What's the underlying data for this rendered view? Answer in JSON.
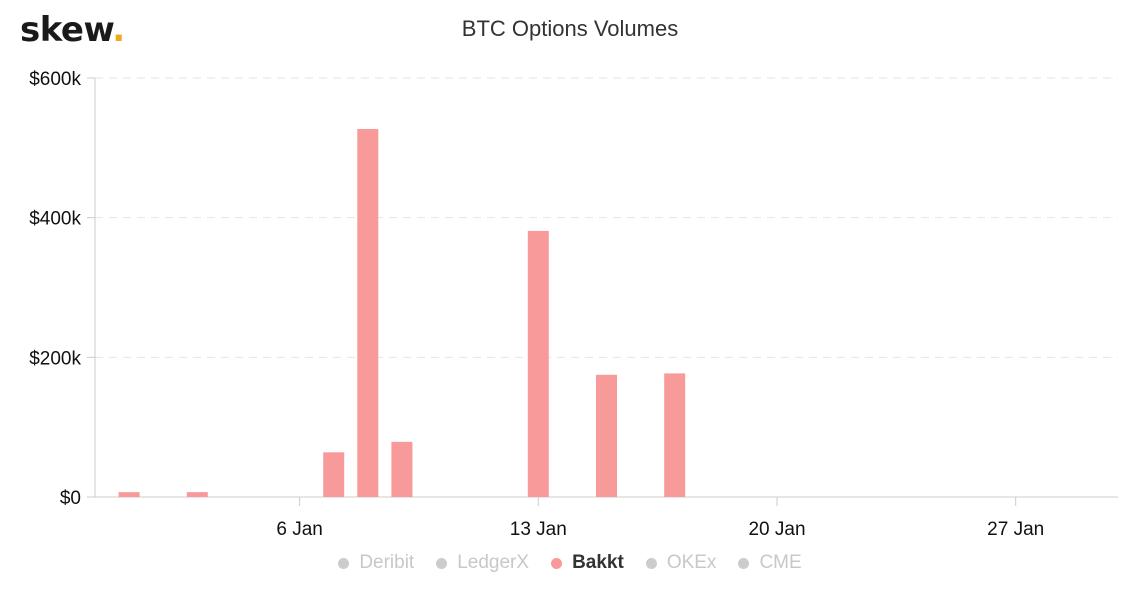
{
  "logo": {
    "text": "skew",
    "dot": "."
  },
  "colors": {
    "bar": "#f99a9a",
    "axis": "#cccccc",
    "grid": "#e6e6e6",
    "inactive_legend": "#cccccc"
  },
  "chart_data": {
    "type": "bar",
    "title": "BTC Options Volumes",
    "xlabel": "",
    "ylabel": "",
    "x_axis": {
      "type": "date",
      "range": [
        "Dec 31",
        "Jan 30"
      ],
      "ticks": [
        {
          "value": "Jan 6",
          "label": "6 Jan"
        },
        {
          "value": "Jan 13",
          "label": "13 Jan"
        },
        {
          "value": "Jan 20",
          "label": "20 Jan"
        },
        {
          "value": "Jan 27",
          "label": "27 Jan"
        }
      ]
    },
    "y_axis": {
      "ylim": [
        0,
        600000
      ],
      "ticks": [
        {
          "value": 0,
          "label": "$0"
        },
        {
          "value": 200000,
          "label": "$200k"
        },
        {
          "value": 400000,
          "label": "$400k"
        },
        {
          "value": 600000,
          "label": "$600k"
        }
      ],
      "grid": true
    },
    "series": [
      {
        "name": "Bakkt",
        "color": "#f99a9a",
        "points": [
          {
            "x": "Jan 1",
            "y": 7000
          },
          {
            "x": "Jan 3",
            "y": 7000
          },
          {
            "x": "Jan 7",
            "y": 64000
          },
          {
            "x": "Jan 8",
            "y": 527000
          },
          {
            "x": "Jan 9",
            "y": 79000
          },
          {
            "x": "Jan 13",
            "y": 381000
          },
          {
            "x": "Jan 15",
            "y": 175000
          },
          {
            "x": "Jan 17",
            "y": 177000
          }
        ]
      }
    ],
    "legend": {
      "placement": "bottom",
      "items": [
        {
          "name": "Deribit",
          "active": false
        },
        {
          "name": "LedgerX",
          "active": false
        },
        {
          "name": "Bakkt",
          "active": true,
          "color": "#f99a9a"
        },
        {
          "name": "OKEx",
          "active": false
        },
        {
          "name": "CME",
          "active": false
        }
      ]
    }
  }
}
